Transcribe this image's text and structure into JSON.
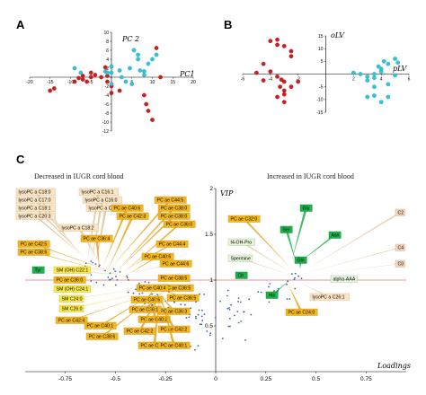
{
  "colors": {
    "group1": "#cc1f1f",
    "group2": "#33c4d4",
    "loading_dot": "#3f63a8",
    "orange": "#f5b81c",
    "orange_dark": "#e8a21a",
    "yellow": "#fbe94a",
    "green": "#1bb34a",
    "pale_green": "#e8f4dc",
    "peach": "#f6d6bb",
    "beige": "#fbe4c4",
    "ref_line": "#e87070"
  },
  "chart_data": [
    {
      "id": "A",
      "panel_label": "A",
      "type": "scatter",
      "xlabel": "PC1",
      "ylabel": "PC 2",
      "xlim": [
        -20,
        20
      ],
      "ylim": [
        -12,
        10
      ],
      "xticks": [
        -20,
        -15,
        -10,
        -5,
        0,
        5,
        10,
        15,
        20
      ],
      "yticks": [
        -12,
        -10,
        -8,
        -6,
        -4,
        -2,
        0,
        2,
        4,
        6,
        8,
        10
      ],
      "series": [
        {
          "color": "#cc1f1f",
          "points": [
            [
              -15,
              -3
            ],
            [
              -14,
              -2.5
            ],
            [
              -9,
              -1
            ],
            [
              -8,
              -0.2
            ],
            [
              -7,
              0.3
            ],
            [
              -7,
              -0.5
            ],
            [
              -6,
              -1
            ],
            [
              -5,
              1
            ],
            [
              -5,
              0
            ],
            [
              -4,
              0.5
            ],
            [
              -2.5,
              0
            ],
            [
              -1.5,
              2.2
            ],
            [
              -1,
              -1
            ],
            [
              -1,
              0.3
            ],
            [
              0,
              -2
            ],
            [
              0,
              -3.5
            ],
            [
              2,
              -3
            ],
            [
              8,
              -4
            ],
            [
              8.5,
              -6
            ],
            [
              9,
              -7.5
            ],
            [
              10,
              -9.5
            ],
            [
              11,
              6.5
            ],
            [
              12,
              0
            ]
          ]
        },
        {
          "color": "#33c4d4",
          "points": [
            [
              -9,
              2
            ],
            [
              -7.5,
              1
            ],
            [
              -1.5,
              1.3
            ],
            [
              -1,
              1
            ],
            [
              0,
              2.4
            ],
            [
              0,
              1
            ],
            [
              2,
              1.5
            ],
            [
              2.5,
              0
            ],
            [
              4.5,
              2
            ],
            [
              5.5,
              6
            ],
            [
              6.5,
              5
            ],
            [
              6.5,
              4
            ],
            [
              7,
              1.5
            ],
            [
              8,
              0.5
            ],
            [
              8,
              1.3
            ],
            [
              9,
              3
            ],
            [
              10,
              4
            ],
            [
              11,
              5
            ],
            [
              5,
              -1.5
            ],
            [
              3.5,
              -1
            ],
            [
              0,
              -1.5
            ]
          ]
        }
      ]
    },
    {
      "id": "B",
      "panel_label": "B",
      "type": "scatter",
      "xlabel": "pLV",
      "ylabel": "oLV",
      "xlim": [
        -6,
        6
      ],
      "ylim": [
        -15,
        15
      ],
      "xticks": [
        -6,
        -4,
        -2,
        2,
        4,
        6
      ],
      "yticks": [
        -15,
        -10,
        -5,
        5,
        10,
        15
      ],
      "series": [
        {
          "color": "#cc1f1f",
          "points": [
            [
              -4,
              13
            ],
            [
              -3.5,
              13.5
            ],
            [
              -3.5,
              11.5
            ],
            [
              -3,
              11
            ],
            [
              -2.5,
              9
            ],
            [
              -2.5,
              7
            ],
            [
              -4.5,
              4
            ],
            [
              -5,
              0.5
            ],
            [
              -4,
              1
            ],
            [
              -3.5,
              -1
            ],
            [
              -3.2,
              -2.2
            ],
            [
              -4.5,
              -2.5
            ],
            [
              -3,
              -3
            ],
            [
              -2,
              -3
            ],
            [
              -3.3,
              -5
            ],
            [
              -3,
              -6.5
            ],
            [
              -3,
              -8
            ],
            [
              -3.5,
              -9
            ],
            [
              -3,
              -11
            ],
            [
              -2.5,
              -5
            ]
          ]
        },
        {
          "color": "#33c4d4",
          "points": [
            [
              2,
              0.5
            ],
            [
              2.5,
              0
            ],
            [
              3,
              -1
            ],
            [
              3,
              -2.5
            ],
            [
              3.5,
              0
            ],
            [
              3.8,
              3
            ],
            [
              4,
              2
            ],
            [
              4,
              1
            ],
            [
              4.2,
              5
            ],
            [
              4.5,
              4
            ],
            [
              5,
              6
            ],
            [
              5.2,
              4.5
            ],
            [
              3.5,
              -5
            ],
            [
              4.5,
              -4
            ],
            [
              3,
              -9
            ],
            [
              3.5,
              -8.5
            ],
            [
              4,
              -11
            ],
            [
              4.5,
              -9
            ],
            [
              3.5,
              -1.5
            ],
            [
              5,
              -0.5
            ]
          ]
        }
      ]
    },
    {
      "id": "C",
      "panel_label": "C",
      "type": "scatter",
      "caption_left": "Decreased in IUGR cord blood",
      "caption_right": "Increased in IUGR cord blood",
      "xlabel": "Loadings",
      "ylabel": "VIP",
      "xlim": [
        -0.95,
        0.95
      ],
      "ylim": [
        0,
        2
      ],
      "xticks": [
        -0.75,
        -0.5,
        -0.25,
        0,
        0.25,
        0.5,
        0.75
      ],
      "yticks": [
        0.5,
        1,
        1.5,
        2
      ],
      "reference_line": 1,
      "labels_left": [
        {
          "text": "lysoPC a C18:0",
          "style": "beige",
          "target": [
            -0.7,
            1.33
          ]
        },
        {
          "text": "lysoPC a C17:0",
          "style": "beige",
          "target": [
            -0.68,
            1.3
          ]
        },
        {
          "text": "lysoPC a C18:1",
          "style": "beige",
          "target": [
            -0.66,
            1.27
          ]
        },
        {
          "text": "lysoPC a C20:3",
          "style": "beige",
          "target": [
            -0.65,
            1.24
          ]
        },
        {
          "text": "lysoPC a C16:1",
          "style": "beige",
          "target": [
            -0.64,
            1.21
          ]
        },
        {
          "text": "lysoPC a C16:0",
          "style": "beige",
          "target": [
            -0.62,
            1.18
          ]
        },
        {
          "text": "lysoPC a C20:4",
          "style": "beige",
          "target": [
            -0.6,
            1.15
          ]
        },
        {
          "text": "lysoPC a C18:2",
          "style": "beige",
          "target": [
            -0.58,
            1.2
          ]
        },
        {
          "text": "PC ae C36:4",
          "style": "orange",
          "target": [
            -0.58,
            1.12
          ]
        },
        {
          "text": "PC ae C40:6",
          "style": "orange",
          "target": [
            -0.56,
            1.16
          ]
        },
        {
          "text": "PC ae C42:3",
          "style": "orange",
          "target": [
            -0.54,
            1.1
          ]
        },
        {
          "text": "PC ae C44:5",
          "style": "orange",
          "target": [
            -0.52,
            1.14
          ]
        },
        {
          "text": "PC ae C38:0",
          "style": "orange",
          "target": [
            -0.5,
            1.08
          ]
        },
        {
          "text": "PC ae C38:0",
          "style": "orange",
          "target": [
            -0.48,
            1.12
          ]
        },
        {
          "text": "PC ae C36:0",
          "style": "orange",
          "target": [
            -0.47,
            1.06
          ]
        },
        {
          "text": "PC ae C44:4",
          "style": "orange",
          "target": [
            -0.46,
            1.1
          ]
        },
        {
          "text": "PC ae C40:6",
          "style": "orange",
          "target": [
            -0.45,
            1.05
          ]
        },
        {
          "text": "PC ae C42:5",
          "style": "orange",
          "target": [
            -0.44,
            1.03
          ]
        },
        {
          "text": "PC ae C44:6",
          "style": "orange",
          "target": [
            -0.43,
            1.08
          ]
        },
        {
          "text": "PC ae C38:6",
          "style": "orange",
          "target": [
            -0.42,
            1.02
          ]
        },
        {
          "text": "Tyr",
          "style": "green",
          "target": [
            -0.4,
            1.06
          ]
        },
        {
          "text": "SM (OH) C22:1",
          "style": "yellow",
          "target": [
            -0.38,
            1.02
          ]
        },
        {
          "text": "PC ae C36:0",
          "style": "orange",
          "target": [
            -0.37,
            0.98
          ]
        },
        {
          "text": "PC ae C38:5",
          "style": "orange",
          "target": [
            -0.36,
            1.03
          ]
        },
        {
          "text": "PC ae C36:5",
          "style": "orange",
          "target": [
            -0.34,
            0.98
          ]
        },
        {
          "text": "PC ae C36:5",
          "style": "orange",
          "target": [
            -0.33,
            0.96
          ]
        },
        {
          "text": "SM (OH) C24:1",
          "style": "yellow",
          "target": [
            -0.36,
            0.94
          ]
        },
        {
          "text": "PC ae C40:4",
          "style": "orange",
          "target": [
            -0.32,
            0.93
          ]
        },
        {
          "text": "SM C24:0",
          "style": "yellow",
          "target": [
            -0.34,
            0.91
          ]
        },
        {
          "text": "PC ae C40:6",
          "style": "orange",
          "target": [
            -0.31,
            0.9
          ]
        },
        {
          "text": "SM C26:0",
          "style": "yellow",
          "target": [
            -0.33,
            0.88
          ]
        },
        {
          "text": "PC ae C42:4",
          "style": "orange",
          "target": [
            -0.32,
            0.86
          ]
        },
        {
          "text": "PC ae C40:2",
          "style": "orange",
          "target": [
            -0.3,
            0.87
          ]
        },
        {
          "text": "PC ae C42:2",
          "style": "orange",
          "target": [
            -0.29,
            0.85
          ]
        },
        {
          "text": "PC ae C38:6",
          "style": "orange",
          "target": [
            -0.3,
            0.83
          ]
        },
        {
          "text": "PC ae C40:3",
          "style": "orange",
          "target": [
            -0.28,
            0.82
          ]
        },
        {
          "text": "PC ae C40:1",
          "style": "orange",
          "target": [
            -0.27,
            0.8
          ]
        },
        {
          "text": "PC ae C36:3",
          "style": "orange",
          "target": [
            -0.28,
            0.85
          ]
        },
        {
          "text": "PC ae C36:1",
          "style": "orange",
          "target": [
            -0.26,
            0.88
          ]
        },
        {
          "text": "PC ae C42:2",
          "style": "orange",
          "target": [
            -0.27,
            0.9
          ]
        },
        {
          "text": "PC ae C40:1",
          "style": "orange",
          "target": [
            -0.26,
            0.92
          ]
        }
      ],
      "labels_right": [
        {
          "text": "PC ae C32:0",
          "style": "orange",
          "target": [
            0.38,
            1.12
          ]
        },
        {
          "text": "t4-OH-Pro",
          "style": "pale_green",
          "target": [
            0.38,
            1.08
          ]
        },
        {
          "text": "Spermine",
          "style": "pale_green",
          "target": [
            0.39,
            1.04
          ]
        },
        {
          "text": "Gly",
          "style": "green",
          "target": [
            0.38,
            1.22
          ]
        },
        {
          "text": "Ser",
          "style": "green",
          "target": [
            0.4,
            1.2
          ]
        },
        {
          "text": "Asn",
          "style": "green",
          "target": [
            0.39,
            1.15
          ]
        },
        {
          "text": "Gln",
          "style": "green",
          "target": [
            0.42,
            1.12
          ]
        },
        {
          "text": "Cit",
          "style": "green",
          "target": [
            0.4,
            1.06
          ]
        },
        {
          "text": "His",
          "style": "green",
          "target": [
            0.37,
            1.0
          ]
        },
        {
          "text": "C2",
          "style": "peach",
          "target": [
            0.44,
            1.1
          ]
        },
        {
          "text": "C4",
          "style": "peach",
          "target": [
            0.44,
            1.07
          ]
        },
        {
          "text": "C0",
          "style": "peach",
          "target": [
            0.43,
            1.04
          ]
        },
        {
          "text": "alpha-AAA",
          "style": "pale_green",
          "target": [
            0.43,
            1.01
          ]
        },
        {
          "text": "PC ae C24:0",
          "style": "orange",
          "target": [
            0.36,
            0.96
          ]
        },
        {
          "text": "lysoPC a C26:1",
          "style": "beige",
          "target": [
            0.42,
            0.97
          ]
        }
      ]
    }
  ]
}
